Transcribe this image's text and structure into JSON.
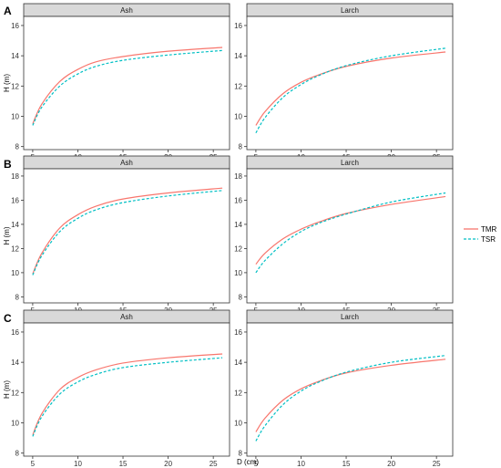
{
  "figure": {
    "xlabel": "D (cm)",
    "ylabel": "H (m)",
    "legend_position": "right",
    "legend": [
      {
        "name": "TMR",
        "color": "#F8766D",
        "dash": "solid"
      },
      {
        "name": "TSR",
        "color": "#00BFC4",
        "dash": "dashed"
      }
    ],
    "x_ticks": [
      "5",
      "10",
      "15",
      "20",
      "25"
    ]
  },
  "chart_data": [
    {
      "type": "line",
      "row": "A",
      "panel": "Ash",
      "xlim": [
        4.0,
        26.8
      ],
      "ylim": [
        7.8,
        16.6
      ],
      "y_ticks": [
        8,
        10,
        12,
        14,
        16
      ],
      "x": [
        5,
        6,
        8,
        10,
        12,
        15,
        20,
        26
      ],
      "series": [
        {
          "name": "TMR",
          "values": [
            9.5,
            10.8,
            12.3,
            13.1,
            13.6,
            13.95,
            14.3,
            14.55
          ]
        },
        {
          "name": "TSR",
          "values": [
            9.4,
            10.6,
            12.0,
            12.8,
            13.3,
            13.7,
            14.05,
            14.35
          ]
        }
      ]
    },
    {
      "type": "line",
      "row": "A",
      "panel": "Larch",
      "xlim": [
        4.0,
        26.8
      ],
      "ylim": [
        7.8,
        16.6
      ],
      "y_ticks": [
        8,
        10,
        12,
        14,
        16
      ],
      "x": [
        5,
        6,
        8,
        10,
        12,
        15,
        20,
        26
      ],
      "series": [
        {
          "name": "TMR",
          "values": [
            9.4,
            10.3,
            11.5,
            12.25,
            12.75,
            13.3,
            13.85,
            14.25
          ]
        },
        {
          "name": "TSR",
          "values": [
            8.9,
            9.9,
            11.25,
            12.1,
            12.7,
            13.35,
            14.0,
            14.5
          ]
        }
      ]
    },
    {
      "type": "line",
      "row": "B",
      "panel": "Ash",
      "xlim": [
        4.0,
        26.8
      ],
      "ylim": [
        7.5,
        18.6
      ],
      "y_ticks": [
        8,
        10,
        12,
        14,
        16,
        18
      ],
      "x": [
        5,
        6,
        8,
        10,
        12,
        15,
        20,
        26
      ],
      "series": [
        {
          "name": "TMR",
          "values": [
            9.9,
            11.6,
            13.7,
            14.8,
            15.5,
            16.1,
            16.6,
            17.0
          ]
        },
        {
          "name": "TSR",
          "values": [
            9.8,
            11.4,
            13.4,
            14.5,
            15.2,
            15.8,
            16.35,
            16.8
          ]
        }
      ]
    },
    {
      "type": "line",
      "row": "B",
      "panel": "Larch",
      "xlim": [
        4.0,
        26.8
      ],
      "ylim": [
        7.5,
        18.6
      ],
      "y_ticks": [
        8,
        10,
        12,
        14,
        16,
        18
      ],
      "x": [
        5,
        6,
        8,
        10,
        12,
        15,
        20,
        26
      ],
      "series": [
        {
          "name": "TMR",
          "values": [
            10.7,
            11.6,
            12.8,
            13.6,
            14.2,
            14.9,
            15.65,
            16.3
          ]
        },
        {
          "name": "TSR",
          "values": [
            10.0,
            11.0,
            12.4,
            13.4,
            14.1,
            14.85,
            15.85,
            16.6
          ]
        }
      ]
    },
    {
      "type": "line",
      "row": "C",
      "panel": "Ash",
      "xlim": [
        4.0,
        26.8
      ],
      "ylim": [
        7.8,
        16.6
      ],
      "y_ticks": [
        8,
        10,
        12,
        14,
        16
      ],
      "x": [
        5,
        6,
        8,
        10,
        12,
        15,
        20,
        26
      ],
      "series": [
        {
          "name": "TMR",
          "values": [
            9.2,
            10.6,
            12.2,
            13.0,
            13.5,
            13.95,
            14.3,
            14.55
          ]
        },
        {
          "name": "TSR",
          "values": [
            9.1,
            10.4,
            11.9,
            12.7,
            13.2,
            13.65,
            14.0,
            14.3
          ]
        }
      ]
    },
    {
      "type": "line",
      "row": "C",
      "panel": "Larch",
      "xlim": [
        4.0,
        26.8
      ],
      "ylim": [
        7.8,
        16.6
      ],
      "y_ticks": [
        8,
        10,
        12,
        14,
        16
      ],
      "x": [
        5,
        6,
        8,
        10,
        12,
        15,
        20,
        26
      ],
      "series": [
        {
          "name": "TMR",
          "values": [
            9.4,
            10.3,
            11.5,
            12.25,
            12.75,
            13.3,
            13.8,
            14.2
          ]
        },
        {
          "name": "TSR",
          "values": [
            8.8,
            9.8,
            11.2,
            12.1,
            12.7,
            13.35,
            14.0,
            14.45
          ]
        }
      ]
    }
  ]
}
